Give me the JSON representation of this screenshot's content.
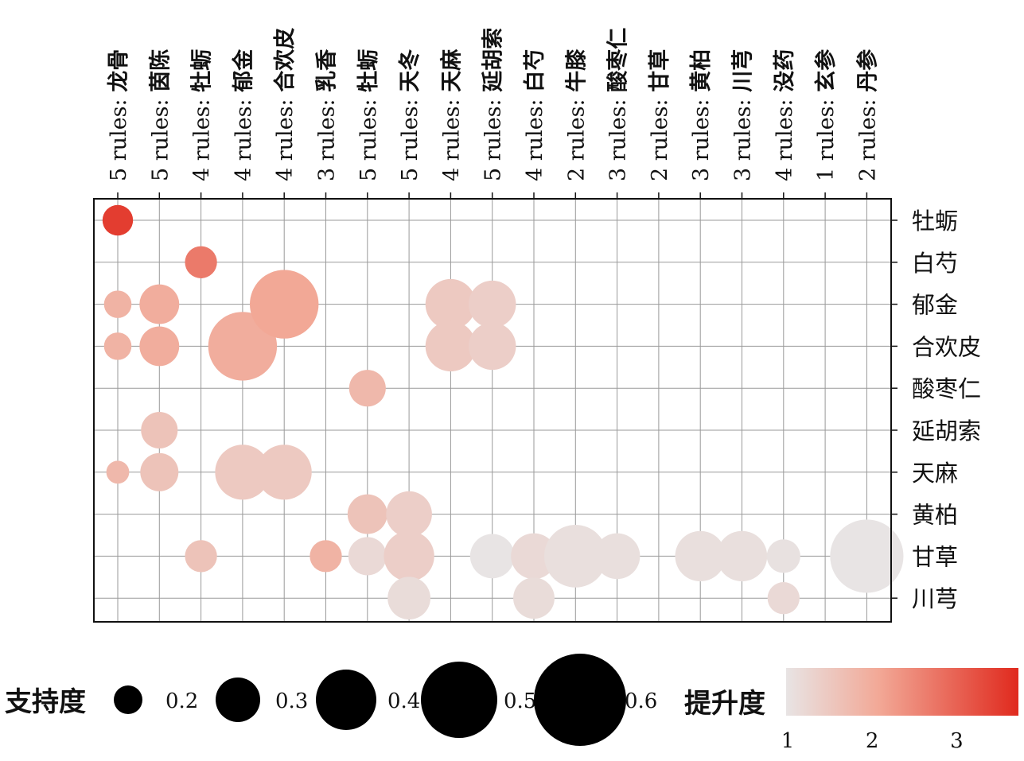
{
  "chart_data": {
    "type": "bubble-matrix",
    "columns": [
      {
        "rule_count": "5",
        "rules_word": "rules:",
        "item": "龙骨"
      },
      {
        "rule_count": "5",
        "rules_word": "rules:",
        "item": "茵陈"
      },
      {
        "rule_count": "4",
        "rules_word": "rules:",
        "item": "牡蛎"
      },
      {
        "rule_count": "4",
        "rules_word": "rules:",
        "item": "郁金"
      },
      {
        "rule_count": "4",
        "rules_word": "rules:",
        "item": "合欢皮"
      },
      {
        "rule_count": "3",
        "rules_word": "rules:",
        "item": "乳香"
      },
      {
        "rule_count": "5",
        "rules_word": "rules:",
        "item": "牡蛎"
      },
      {
        "rule_count": "5",
        "rules_word": "rules:",
        "item": "天冬"
      },
      {
        "rule_count": "4",
        "rules_word": "rules:",
        "item": "天麻"
      },
      {
        "rule_count": "5",
        "rules_word": "rules:",
        "item": "延胡索"
      },
      {
        "rule_count": "4",
        "rules_word": "rules:",
        "item": "白芍"
      },
      {
        "rule_count": "2",
        "rules_word": "rules:",
        "item": "牛膝"
      },
      {
        "rule_count": "3",
        "rules_word": "rules:",
        "item": "酸枣仁"
      },
      {
        "rule_count": "2",
        "rules_word": "rules:",
        "item": "甘草"
      },
      {
        "rule_count": "3",
        "rules_word": "rules:",
        "item": "黄柏"
      },
      {
        "rule_count": "3",
        "rules_word": "rules:",
        "item": "川芎"
      },
      {
        "rule_count": "4",
        "rules_word": "rules:",
        "item": "没药"
      },
      {
        "rule_count": "1",
        "rules_word": "rules:",
        "item": "玄参"
      },
      {
        "rule_count": "2",
        "rules_word": "rules:",
        "item": "丹参"
      }
    ],
    "rows": [
      "牡蛎",
      "白芍",
      "郁金",
      "合欢皮",
      "酸枣仁",
      "延胡索",
      "天麻",
      "黄柏",
      "甘草",
      "川芎"
    ],
    "points": [
      {
        "col": 0,
        "row": 0,
        "support": 0.2,
        "lift": 3.5
      },
      {
        "col": 0,
        "row": 2,
        "support": 0.18,
        "lift": 1.9
      },
      {
        "col": 0,
        "row": 3,
        "support": 0.18,
        "lift": 1.9
      },
      {
        "col": 0,
        "row": 6,
        "support": 0.15,
        "lift": 1.8
      },
      {
        "col": 1,
        "row": 2,
        "support": 0.26,
        "lift": 2.0
      },
      {
        "col": 1,
        "row": 3,
        "support": 0.26,
        "lift": 2.0
      },
      {
        "col": 1,
        "row": 5,
        "support": 0.24,
        "lift": 1.6
      },
      {
        "col": 1,
        "row": 6,
        "support": 0.25,
        "lift": 1.6
      },
      {
        "col": 2,
        "row": 1,
        "support": 0.21,
        "lift": 2.7
      },
      {
        "col": 2,
        "row": 8,
        "support": 0.21,
        "lift": 1.6
      },
      {
        "col": 3,
        "row": 3,
        "support": 0.45,
        "lift": 2.0
      },
      {
        "col": 3,
        "row": 6,
        "support": 0.36,
        "lift": 1.5
      },
      {
        "col": 4,
        "row": 2,
        "support": 0.45,
        "lift": 2.1
      },
      {
        "col": 4,
        "row": 6,
        "support": 0.36,
        "lift": 1.5
      },
      {
        "col": 5,
        "row": 8,
        "support": 0.21,
        "lift": 1.9
      },
      {
        "col": 6,
        "row": 4,
        "support": 0.24,
        "lift": 1.8
      },
      {
        "col": 6,
        "row": 7,
        "support": 0.26,
        "lift": 1.6
      },
      {
        "col": 6,
        "row": 8,
        "support": 0.25,
        "lift": 1.2
      },
      {
        "col": 7,
        "row": 7,
        "support": 0.3,
        "lift": 1.4
      },
      {
        "col": 7,
        "row": 8,
        "support": 0.33,
        "lift": 1.4
      },
      {
        "col": 7,
        "row": 9,
        "support": 0.28,
        "lift": 1.15
      },
      {
        "col": 8,
        "row": 2,
        "support": 0.33,
        "lift": 1.5
      },
      {
        "col": 8,
        "row": 3,
        "support": 0.33,
        "lift": 1.5
      },
      {
        "col": 9,
        "row": 2,
        "support": 0.31,
        "lift": 1.4
      },
      {
        "col": 9,
        "row": 3,
        "support": 0.31,
        "lift": 1.4
      },
      {
        "col": 9,
        "row": 8,
        "support": 0.29,
        "lift": 1.0
      },
      {
        "col": 10,
        "row": 8,
        "support": 0.3,
        "lift": 1.2
      },
      {
        "col": 10,
        "row": 9,
        "support": 0.27,
        "lift": 1.15
      },
      {
        "col": 11,
        "row": 8,
        "support": 0.41,
        "lift": 1.1
      },
      {
        "col": 12,
        "row": 8,
        "support": 0.3,
        "lift": 1.1
      },
      {
        "col": 14,
        "row": 8,
        "support": 0.33,
        "lift": 1.1
      },
      {
        "col": 15,
        "row": 8,
        "support": 0.33,
        "lift": 1.1
      },
      {
        "col": 16,
        "row": 8,
        "support": 0.22,
        "lift": 1.05
      },
      {
        "col": 16,
        "row": 9,
        "support": 0.21,
        "lift": 1.2
      },
      {
        "col": 18,
        "row": 8,
        "support": 0.48,
        "lift": 1.0
      }
    ],
    "size_legend": {
      "title": "支持度",
      "values": [
        0.2,
        0.3,
        0.4,
        0.5,
        0.6
      ],
      "labels": [
        "0.2",
        "0.3",
        "0.4",
        "0.5",
        "0.6"
      ]
    },
    "color_legend": {
      "title": "提升度",
      "range": [
        1,
        3.75
      ],
      "ticks": [
        1,
        2,
        3
      ],
      "tick_labels": [
        "1",
        "2",
        "3"
      ],
      "low_color": "#e8e4e4",
      "mid_color": "#f2a896",
      "high_color": "#e02a1e"
    },
    "grid": true
  }
}
